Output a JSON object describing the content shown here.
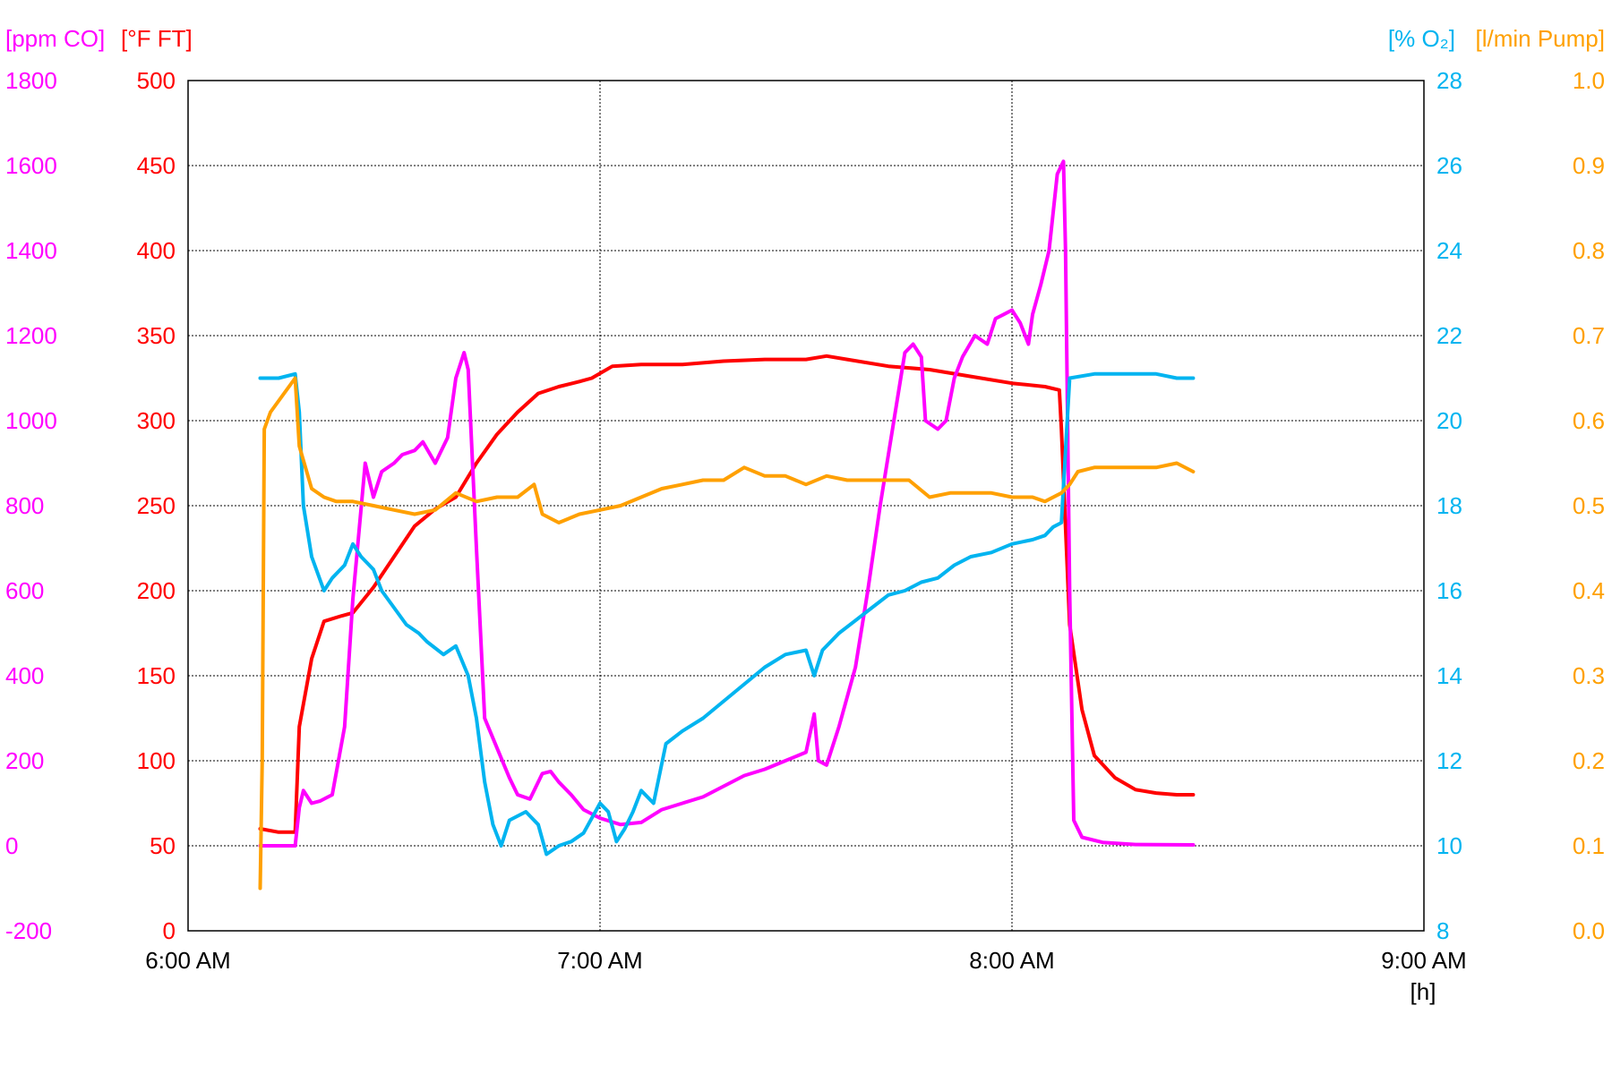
{
  "colors": {
    "co": "#ff00ff",
    "ft": "#ff0000",
    "o2": "#00b4f0",
    "pump": "#ffa000",
    "axis": "#000000",
    "grid": "#000000"
  },
  "units": {
    "co": "[ppm CO]",
    "ft": "[°F FT]",
    "o2": "[% O₂]",
    "pump": "[l/min Pump]",
    "x": "[h]"
  },
  "chart_data": {
    "type": "line",
    "grid": true,
    "x_unit": "hours",
    "x_ticks": [
      {
        "x": 6,
        "label": "6:00 AM"
      },
      {
        "x": 7,
        "label": "7:00 AM"
      },
      {
        "x": 8,
        "label": "8:00 AM"
      },
      {
        "x": 9,
        "label": "9:00 AM"
      }
    ],
    "xlim": [
      6,
      9
    ],
    "axes": {
      "co": {
        "position": "left-outer",
        "ylim": [
          -200,
          1800
        ],
        "ticks": [
          "-200",
          "0",
          "200",
          "400",
          "600",
          "800",
          "1000",
          "1200",
          "1400",
          "1600",
          "1800"
        ]
      },
      "ft": {
        "position": "left-inner",
        "ylim": [
          0,
          500
        ],
        "ticks": [
          "0",
          "50",
          "100",
          "150",
          "200",
          "250",
          "300",
          "350",
          "400",
          "450",
          "500"
        ]
      },
      "o2": {
        "position": "right-inner",
        "ylim": [
          8,
          28
        ],
        "ticks": [
          "8",
          "10",
          "12",
          "14",
          "16",
          "18",
          "20",
          "22",
          "24",
          "26",
          "28"
        ]
      },
      "pump": {
        "position": "right-outer",
        "ylim": [
          0.0,
          1.0
        ],
        "ticks": [
          "0.0",
          "0.1",
          "0.2",
          "0.3",
          "0.4",
          "0.5",
          "0.6",
          "0.7",
          "0.8",
          "0.9",
          "1.0"
        ]
      }
    },
    "series": [
      {
        "key": "ft",
        "axis": "ft",
        "points": [
          [
            6.175,
            60
          ],
          [
            6.22,
            58
          ],
          [
            6.26,
            58
          ],
          [
            6.27,
            120
          ],
          [
            6.3,
            160
          ],
          [
            6.33,
            182
          ],
          [
            6.37,
            185
          ],
          [
            6.4,
            187
          ],
          [
            6.45,
            202
          ],
          [
            6.5,
            220
          ],
          [
            6.55,
            238
          ],
          [
            6.6,
            248
          ],
          [
            6.65,
            255
          ],
          [
            6.7,
            275
          ],
          [
            6.75,
            292
          ],
          [
            6.8,
            305
          ],
          [
            6.85,
            316
          ],
          [
            6.9,
            320
          ],
          [
            6.95,
            323
          ],
          [
            6.98,
            325
          ],
          [
            7.03,
            332
          ],
          [
            7.1,
            333
          ],
          [
            7.2,
            333
          ],
          [
            7.3,
            335
          ],
          [
            7.4,
            336
          ],
          [
            7.5,
            336
          ],
          [
            7.55,
            338
          ],
          [
            7.6,
            336
          ],
          [
            7.7,
            332
          ],
          [
            7.8,
            330
          ],
          [
            7.9,
            326
          ],
          [
            8.0,
            322
          ],
          [
            8.08,
            320
          ],
          [
            8.115,
            318
          ],
          [
            8.12,
            295
          ],
          [
            8.14,
            180
          ],
          [
            8.17,
            130
          ],
          [
            8.2,
            103
          ],
          [
            8.25,
            90
          ],
          [
            8.3,
            83
          ],
          [
            8.35,
            81
          ],
          [
            8.4,
            80
          ],
          [
            8.44,
            80
          ]
        ]
      },
      {
        "key": "co",
        "axis": "co",
        "points": [
          [
            6.175,
            0
          ],
          [
            6.26,
            0
          ],
          [
            6.27,
            90
          ],
          [
            6.28,
            130
          ],
          [
            6.3,
            100
          ],
          [
            6.32,
            105
          ],
          [
            6.35,
            120
          ],
          [
            6.38,
            280
          ],
          [
            6.4,
            580
          ],
          [
            6.43,
            900
          ],
          [
            6.45,
            820
          ],
          [
            6.47,
            880
          ],
          [
            6.5,
            900
          ],
          [
            6.52,
            920
          ],
          [
            6.55,
            930
          ],
          [
            6.57,
            950
          ],
          [
            6.6,
            900
          ],
          [
            6.63,
            960
          ],
          [
            6.65,
            1100
          ],
          [
            6.67,
            1160
          ],
          [
            6.68,
            1120
          ],
          [
            6.7,
            700
          ],
          [
            6.72,
            300
          ],
          [
            6.75,
            230
          ],
          [
            6.78,
            160
          ],
          [
            6.8,
            120
          ],
          [
            6.83,
            110
          ],
          [
            6.86,
            170
          ],
          [
            6.88,
            175
          ],
          [
            6.9,
            150
          ],
          [
            6.93,
            120
          ],
          [
            6.96,
            85
          ],
          [
            7.0,
            65
          ],
          [
            7.05,
            50
          ],
          [
            7.1,
            55
          ],
          [
            7.15,
            85
          ],
          [
            7.2,
            100
          ],
          [
            7.25,
            115
          ],
          [
            7.3,
            140
          ],
          [
            7.35,
            165
          ],
          [
            7.4,
            180
          ],
          [
            7.45,
            200
          ],
          [
            7.5,
            220
          ],
          [
            7.52,
            310
          ],
          [
            7.53,
            200
          ],
          [
            7.55,
            190
          ],
          [
            7.58,
            280
          ],
          [
            7.62,
            420
          ],
          [
            7.65,
            600
          ],
          [
            7.68,
            800
          ],
          [
            7.72,
            1040
          ],
          [
            7.74,
            1160
          ],
          [
            7.76,
            1180
          ],
          [
            7.78,
            1150
          ],
          [
            7.79,
            1000
          ],
          [
            7.82,
            980
          ],
          [
            7.84,
            1000
          ],
          [
            7.86,
            1100
          ],
          [
            7.88,
            1150
          ],
          [
            7.91,
            1200
          ],
          [
            7.94,
            1180
          ],
          [
            7.96,
            1240
          ],
          [
            7.98,
            1250
          ],
          [
            8.0,
            1260
          ],
          [
            8.02,
            1230
          ],
          [
            8.04,
            1180
          ],
          [
            8.05,
            1250
          ],
          [
            8.07,
            1320
          ],
          [
            8.09,
            1400
          ],
          [
            8.11,
            1580
          ],
          [
            8.125,
            1610
          ],
          [
            8.13,
            1400
          ],
          [
            8.14,
            600
          ],
          [
            8.15,
            60
          ],
          [
            8.17,
            20
          ],
          [
            8.22,
            8
          ],
          [
            8.3,
            3
          ],
          [
            8.44,
            2
          ]
        ]
      },
      {
        "key": "o2",
        "axis": "o2",
        "points": [
          [
            6.175,
            21.0
          ],
          [
            6.22,
            21.0
          ],
          [
            6.26,
            21.1
          ],
          [
            6.27,
            20.2
          ],
          [
            6.28,
            18.0
          ],
          [
            6.3,
            16.8
          ],
          [
            6.33,
            16.0
          ],
          [
            6.35,
            16.3
          ],
          [
            6.38,
            16.6
          ],
          [
            6.4,
            17.1
          ],
          [
            6.42,
            16.8
          ],
          [
            6.45,
            16.5
          ],
          [
            6.47,
            16.0
          ],
          [
            6.5,
            15.6
          ],
          [
            6.53,
            15.2
          ],
          [
            6.56,
            15.0
          ],
          [
            6.58,
            14.8
          ],
          [
            6.62,
            14.5
          ],
          [
            6.65,
            14.7
          ],
          [
            6.68,
            14.0
          ],
          [
            6.7,
            13.0
          ],
          [
            6.72,
            11.5
          ],
          [
            6.74,
            10.5
          ],
          [
            6.76,
            10.0
          ],
          [
            6.78,
            10.6
          ],
          [
            6.82,
            10.8
          ],
          [
            6.85,
            10.5
          ],
          [
            6.87,
            9.8
          ],
          [
            6.9,
            10.0
          ],
          [
            6.93,
            10.1
          ],
          [
            6.96,
            10.3
          ],
          [
            7.0,
            11.0
          ],
          [
            7.02,
            10.8
          ],
          [
            7.04,
            10.1
          ],
          [
            7.06,
            10.4
          ],
          [
            7.08,
            10.8
          ],
          [
            7.1,
            11.3
          ],
          [
            7.13,
            11.0
          ],
          [
            7.16,
            12.4
          ],
          [
            7.2,
            12.7
          ],
          [
            7.25,
            13.0
          ],
          [
            7.3,
            13.4
          ],
          [
            7.35,
            13.8
          ],
          [
            7.4,
            14.2
          ],
          [
            7.45,
            14.5
          ],
          [
            7.5,
            14.6
          ],
          [
            7.52,
            14.0
          ],
          [
            7.54,
            14.6
          ],
          [
            7.58,
            15.0
          ],
          [
            7.62,
            15.3
          ],
          [
            7.66,
            15.6
          ],
          [
            7.7,
            15.9
          ],
          [
            7.74,
            16.0
          ],
          [
            7.78,
            16.2
          ],
          [
            7.82,
            16.3
          ],
          [
            7.86,
            16.6
          ],
          [
            7.9,
            16.8
          ],
          [
            7.95,
            16.9
          ],
          [
            8.0,
            17.1
          ],
          [
            8.05,
            17.2
          ],
          [
            8.08,
            17.3
          ],
          [
            8.1,
            17.5
          ],
          [
            8.12,
            17.6
          ],
          [
            8.14,
            21.0
          ],
          [
            8.2,
            21.1
          ],
          [
            8.3,
            21.1
          ],
          [
            8.35,
            21.1
          ],
          [
            8.4,
            21.0
          ],
          [
            8.44,
            21.0
          ]
        ]
      },
      {
        "key": "pump",
        "axis": "pump",
        "points": [
          [
            6.175,
            0.05
          ],
          [
            6.18,
            0.2
          ],
          [
            6.185,
            0.59
          ],
          [
            6.2,
            0.61
          ],
          [
            6.23,
            0.63
          ],
          [
            6.26,
            0.65
          ],
          [
            6.27,
            0.57
          ],
          [
            6.3,
            0.52
          ],
          [
            6.33,
            0.51
          ],
          [
            6.36,
            0.505
          ],
          [
            6.4,
            0.505
          ],
          [
            6.45,
            0.5
          ],
          [
            6.5,
            0.495
          ],
          [
            6.55,
            0.49
          ],
          [
            6.6,
            0.495
          ],
          [
            6.65,
            0.515
          ],
          [
            6.7,
            0.505
          ],
          [
            6.75,
            0.51
          ],
          [
            6.8,
            0.51
          ],
          [
            6.84,
            0.525
          ],
          [
            6.86,
            0.49
          ],
          [
            6.9,
            0.48
          ],
          [
            6.95,
            0.49
          ],
          [
            7.0,
            0.495
          ],
          [
            7.05,
            0.5
          ],
          [
            7.1,
            0.51
          ],
          [
            7.15,
            0.52
          ],
          [
            7.2,
            0.525
          ],
          [
            7.25,
            0.53
          ],
          [
            7.3,
            0.53
          ],
          [
            7.35,
            0.545
          ],
          [
            7.4,
            0.535
          ],
          [
            7.45,
            0.535
          ],
          [
            7.5,
            0.525
          ],
          [
            7.55,
            0.535
          ],
          [
            7.6,
            0.53
          ],
          [
            7.65,
            0.53
          ],
          [
            7.7,
            0.53
          ],
          [
            7.75,
            0.53
          ],
          [
            7.8,
            0.51
          ],
          [
            7.85,
            0.515
          ],
          [
            7.9,
            0.515
          ],
          [
            7.95,
            0.515
          ],
          [
            8.0,
            0.51
          ],
          [
            8.05,
            0.51
          ],
          [
            8.08,
            0.505
          ],
          [
            8.12,
            0.515
          ],
          [
            8.14,
            0.525
          ],
          [
            8.16,
            0.54
          ],
          [
            8.2,
            0.545
          ],
          [
            8.25,
            0.545
          ],
          [
            8.3,
            0.545
          ],
          [
            8.35,
            0.545
          ],
          [
            8.4,
            0.55
          ],
          [
            8.44,
            0.54
          ]
        ]
      }
    ]
  }
}
